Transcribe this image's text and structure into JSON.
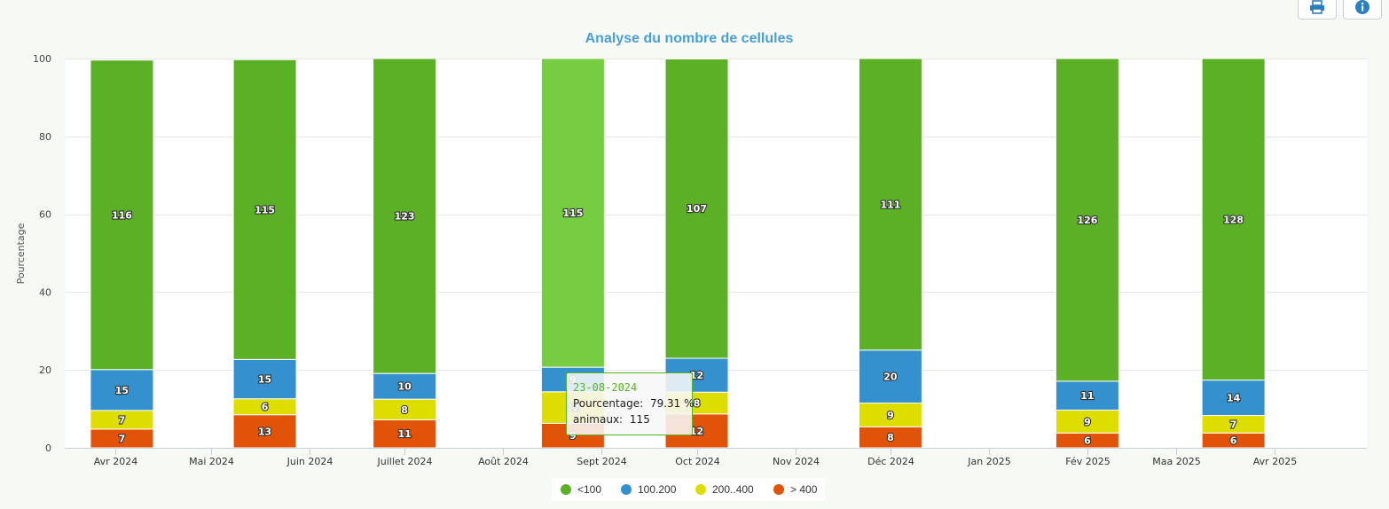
{
  "toolbar": {
    "print_icon": "printer-icon",
    "info_icon": "info-icon"
  },
  "colors": {
    "lt100": "#5cb026",
    "lt100_hover": "#77cd42",
    "r100_200": "#3591cd",
    "r200_400": "#dddd00",
    "gt400": "#e2530a",
    "title": "#4a9fd6",
    "tooltip_border": "#5ab426"
  },
  "chart_data": {
    "type": "bar",
    "stacked": true,
    "title": "Analyse du nombre de cellules",
    "ylabel": "Pourcentage",
    "ylim": [
      0,
      100
    ],
    "yticks": [
      0,
      20,
      40,
      60,
      80,
      100
    ],
    "xlim": [
      "2024-03-16",
      "2025-04-30"
    ],
    "xticks": [
      {
        "label": "Avr 2024",
        "date": "2024-04-01"
      },
      {
        "label": "Mai 2024",
        "date": "2024-05-01"
      },
      {
        "label": "Juin 2024",
        "date": "2024-06-01"
      },
      {
        "label": "Juillet 2024",
        "date": "2024-07-01"
      },
      {
        "label": "Août 2024",
        "date": "2024-08-01"
      },
      {
        "label": "Sept 2024",
        "date": "2024-09-01"
      },
      {
        "label": "Oct 2024",
        "date": "2024-10-01"
      },
      {
        "label": "Nov 2024",
        "date": "2024-11-01"
      },
      {
        "label": "Déc 2024",
        "date": "2024-12-01"
      },
      {
        "label": "Jan 2025",
        "date": "2025-01-01"
      },
      {
        "label": "Fév 2025",
        "date": "2025-02-01"
      },
      {
        "label": "Maa 2025",
        "date": "2025-03-01"
      },
      {
        "label": "Avr 2025",
        "date": "2025-04-01"
      }
    ],
    "legend_position": "bottom-center",
    "grid": true,
    "series": [
      {
        "name": "<100",
        "key": "lt100",
        "percent": [
          79.5,
          77.0,
          80.9,
          79.31,
          76.9,
          74.9,
          82.9,
          82.6
        ],
        "animals": [
          116,
          115,
          123,
          115,
          107,
          111,
          126,
          128
        ]
      },
      {
        "name": "100.200",
        "key": "r100_200",
        "percent": [
          10.5,
          10.1,
          6.6,
          6.3,
          8.7,
          13.6,
          7.4,
          9.1
        ],
        "animals": [
          15,
          15,
          10,
          9,
          12,
          20,
          11,
          14
        ]
      },
      {
        "name": "200..400",
        "key": "r200_400",
        "percent": [
          4.8,
          4.1,
          5.3,
          8.1,
          5.6,
          6.1,
          5.9,
          4.5
        ],
        "animals": [
          7,
          6,
          8,
          12,
          8,
          9,
          9,
          7
        ]
      },
      {
        "name": "> 400",
        "key": "gt400",
        "percent": [
          4.8,
          8.5,
          7.2,
          6.3,
          8.7,
          5.4,
          3.8,
          3.8
        ],
        "animals": [
          7,
          13,
          11,
          9,
          12,
          8,
          6,
          6
        ]
      }
    ],
    "dates": [
      "2024-04-03",
      "2024-05-18",
      "2024-07-01",
      "2024-08-23",
      "2024-10-01",
      "2024-12-01",
      "2025-02-01",
      "2025-03-19"
    ],
    "tooltip": {
      "date": "23-08-2024",
      "percent_label": "Pourcentage:",
      "percent_value": "79.31 %",
      "animals_label": "animaux:",
      "animals_value": "115"
    }
  }
}
